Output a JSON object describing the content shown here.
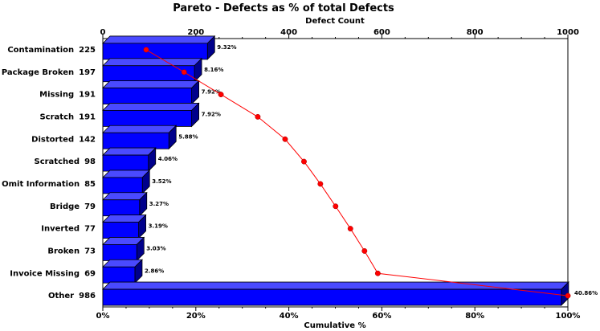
{
  "chart_data": {
    "type": "bar",
    "orientation": "horizontal",
    "title": "Pareto - Defects as % of total Defects",
    "top_axis": {
      "label": "Defect Count",
      "range": [
        0,
        1000
      ],
      "ticks": [
        "0",
        "200",
        "400",
        "600",
        "800",
        "1000"
      ]
    },
    "bottom_axis": {
      "label": "Cumulative %",
      "range": [
        0,
        100
      ],
      "ticks": [
        "0%",
        "20%",
        "40%",
        "60%",
        "80%",
        "100%"
      ]
    },
    "categories": [
      "Contamination",
      "Package Broken",
      "Missing",
      "Scratch",
      "Distorted",
      "Scratched",
      "Omit Information",
      "Bridge",
      "Inverted",
      "Broken",
      "Invoice Missing",
      "Other"
    ],
    "counts": [
      "225",
      "197",
      "191",
      "191",
      "142",
      "98",
      "85",
      "79",
      "77",
      "73",
      "69",
      "986"
    ],
    "series": [
      {
        "name": "Defect Count",
        "type": "bar",
        "values": [
          225,
          197,
          191,
          191,
          142,
          98,
          85,
          79,
          77,
          73,
          69,
          986
        ],
        "data_labels": [
          "9.32%",
          "8.16%",
          "7.92%",
          "7.92%",
          "5.88%",
          "4.06%",
          "3.52%",
          "3.27%",
          "3.19%",
          "3.03%",
          "2.86%",
          "40.86%"
        ],
        "color": "#0000ff"
      },
      {
        "name": "Cumulative %",
        "type": "line",
        "values": [
          9.32,
          17.48,
          25.4,
          33.32,
          39.2,
          43.26,
          46.78,
          50.05,
          53.24,
          56.27,
          59.13,
          100.0
        ],
        "color": "#ff0000"
      }
    ]
  }
}
